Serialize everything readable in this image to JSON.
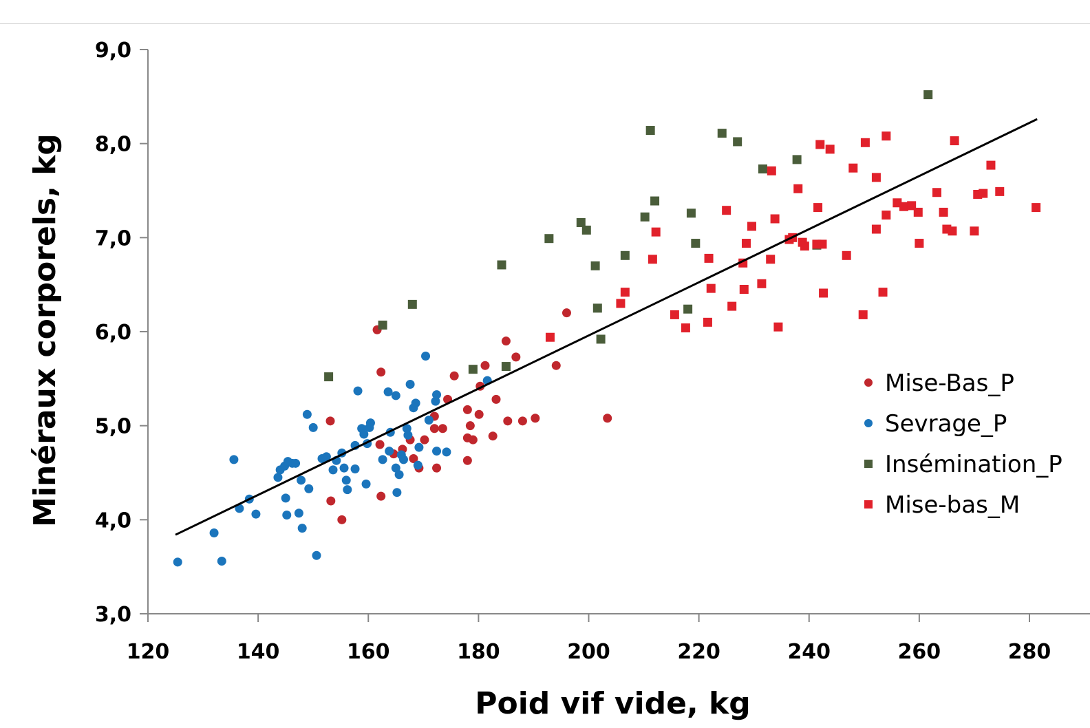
{
  "chart_data": {
    "type": "scatter",
    "title": "",
    "xlabel": "Poid vif vide, kg",
    "ylabel": "Minéraux corporels, kg",
    "xlim": [
      120,
      280
    ],
    "ylim": [
      3.0,
      9.0
    ],
    "xticks": [
      "120",
      "140",
      "160",
      "180",
      "200",
      "220",
      "240",
      "260",
      "280"
    ],
    "yticks": [
      "3,0",
      "4,0",
      "5,0",
      "6,0",
      "7,0",
      "8,0",
      "9,0"
    ],
    "grid": false,
    "legend_position": "right",
    "series": [
      {
        "name": "Mise-Bas_P",
        "marker": "circle",
        "color": "#c0272d",
        "points": [
          [
            153.1,
            5.05
          ],
          [
            153.2,
            4.2
          ],
          [
            155.2,
            4.0
          ],
          [
            161.6,
            6.02
          ],
          [
            162.3,
            5.57
          ],
          [
            162.1,
            4.8
          ],
          [
            162.3,
            4.25
          ],
          [
            164.6,
            4.7
          ],
          [
            166.2,
            4.75
          ],
          [
            167.6,
            4.85
          ],
          [
            168.2,
            4.65
          ],
          [
            169.2,
            4.55
          ],
          [
            170.2,
            4.85
          ],
          [
            172.0,
            5.1
          ],
          [
            172.0,
            4.97
          ],
          [
            172.4,
            4.55
          ],
          [
            173.5,
            4.97
          ],
          [
            174.4,
            5.28
          ],
          [
            175.6,
            5.53
          ],
          [
            178.0,
            5.17
          ],
          [
            178.0,
            4.87
          ],
          [
            178.0,
            4.63
          ],
          [
            178.5,
            5.0
          ],
          [
            179.0,
            4.85
          ],
          [
            180.1,
            5.12
          ],
          [
            180.3,
            5.42
          ],
          [
            181.2,
            5.64
          ],
          [
            182.6,
            4.89
          ],
          [
            183.2,
            5.28
          ],
          [
            185.0,
            5.9
          ],
          [
            185.3,
            5.05
          ],
          [
            186.8,
            5.73
          ],
          [
            188.0,
            5.05
          ],
          [
            190.3,
            5.08
          ],
          [
            194.1,
            5.64
          ],
          [
            196.0,
            6.2
          ],
          [
            203.4,
            5.08
          ]
        ]
      },
      {
        "name": "Sevrage_P",
        "marker": "circle",
        "color": "#1b75bc",
        "points": [
          [
            125.4,
            3.55
          ],
          [
            132.0,
            3.86
          ],
          [
            133.4,
            3.56
          ],
          [
            135.6,
            4.64
          ],
          [
            136.6,
            4.12
          ],
          [
            138.4,
            4.22
          ],
          [
            139.6,
            4.06
          ],
          [
            143.6,
            4.45
          ],
          [
            144.0,
            4.53
          ],
          [
            144.8,
            4.57
          ],
          [
            145.0,
            4.23
          ],
          [
            145.2,
            4.05
          ],
          [
            145.4,
            4.62
          ],
          [
            146.2,
            4.6
          ],
          [
            146.8,
            4.6
          ],
          [
            147.4,
            4.07
          ],
          [
            147.8,
            4.42
          ],
          [
            148.0,
            3.91
          ],
          [
            148.9,
            5.12
          ],
          [
            149.2,
            4.33
          ],
          [
            150.0,
            4.98
          ],
          [
            150.6,
            3.62
          ],
          [
            151.6,
            4.65
          ],
          [
            152.4,
            4.67
          ],
          [
            153.6,
            4.53
          ],
          [
            154.2,
            4.63
          ],
          [
            155.2,
            4.71
          ],
          [
            155.6,
            4.55
          ],
          [
            156.0,
            4.42
          ],
          [
            156.2,
            4.32
          ],
          [
            157.6,
            4.54
          ],
          [
            157.6,
            4.79
          ],
          [
            158.1,
            5.37
          ],
          [
            158.8,
            4.97
          ],
          [
            159.2,
            4.91
          ],
          [
            159.6,
            4.38
          ],
          [
            159.8,
            4.81
          ],
          [
            160.2,
            4.98
          ],
          [
            160.4,
            5.03
          ],
          [
            162.6,
            4.64
          ],
          [
            163.6,
            5.36
          ],
          [
            163.8,
            4.73
          ],
          [
            164.0,
            4.93
          ],
          [
            165.0,
            5.32
          ],
          [
            165.0,
            4.55
          ],
          [
            165.2,
            4.29
          ],
          [
            165.6,
            4.48
          ],
          [
            166.0,
            4.69
          ],
          [
            166.4,
            4.64
          ],
          [
            167.0,
            4.97
          ],
          [
            167.2,
            4.9
          ],
          [
            167.6,
            5.44
          ],
          [
            168.2,
            5.19
          ],
          [
            168.6,
            5.24
          ],
          [
            169.0,
            4.58
          ],
          [
            169.2,
            4.77
          ],
          [
            170.4,
            5.74
          ],
          [
            171.0,
            5.06
          ],
          [
            172.2,
            5.26
          ],
          [
            172.4,
            5.33
          ],
          [
            172.4,
            4.73
          ],
          [
            174.2,
            4.72
          ],
          [
            181.6,
            5.48
          ]
        ]
      },
      {
        "name": "Insémination_P",
        "marker": "square",
        "color": "#4a5d3a",
        "points": [
          [
            152.8,
            5.52
          ],
          [
            162.6,
            6.07
          ],
          [
            168.0,
            6.29
          ],
          [
            179.0,
            5.6
          ],
          [
            184.2,
            6.71
          ],
          [
            185.0,
            5.63
          ],
          [
            192.8,
            6.99
          ],
          [
            198.6,
            7.16
          ],
          [
            199.6,
            7.08
          ],
          [
            201.2,
            6.7
          ],
          [
            201.6,
            6.25
          ],
          [
            202.2,
            5.92
          ],
          [
            206.6,
            6.81
          ],
          [
            210.2,
            7.22
          ],
          [
            211.2,
            8.14
          ],
          [
            212.0,
            7.39
          ],
          [
            218.0,
            6.24
          ],
          [
            218.6,
            7.26
          ],
          [
            219.4,
            6.94
          ],
          [
            224.2,
            8.11
          ],
          [
            227.0,
            8.02
          ],
          [
            231.6,
            7.73
          ],
          [
            237.8,
            7.83
          ],
          [
            241.4,
            6.92
          ],
          [
            261.6,
            8.52
          ]
        ]
      },
      {
        "name": "Mise-bas_M",
        "marker": "square",
        "color": "#e1212b",
        "points": [
          [
            193.0,
            5.94
          ],
          [
            205.8,
            6.3
          ],
          [
            206.6,
            6.42
          ],
          [
            211.6,
            6.77
          ],
          [
            212.2,
            7.06
          ],
          [
            215.6,
            6.18
          ],
          [
            217.6,
            6.04
          ],
          [
            221.6,
            6.1
          ],
          [
            221.8,
            6.78
          ],
          [
            222.2,
            6.46
          ],
          [
            225.0,
            7.29
          ],
          [
            226.0,
            6.27
          ],
          [
            228.0,
            6.73
          ],
          [
            228.2,
            6.45
          ],
          [
            228.6,
            6.94
          ],
          [
            229.6,
            7.12
          ],
          [
            231.4,
            6.51
          ],
          [
            233.0,
            6.77
          ],
          [
            233.2,
            7.71
          ],
          [
            233.8,
            7.2
          ],
          [
            234.4,
            6.05
          ],
          [
            236.4,
            6.98
          ],
          [
            237.0,
            7.0
          ],
          [
            238.0,
            7.52
          ],
          [
            238.8,
            6.95
          ],
          [
            239.2,
            6.91
          ],
          [
            241.4,
            6.93
          ],
          [
            241.6,
            7.32
          ],
          [
            242.0,
            7.99
          ],
          [
            242.4,
            6.93
          ],
          [
            242.6,
            6.41
          ],
          [
            243.8,
            7.94
          ],
          [
            246.8,
            6.81
          ],
          [
            248.0,
            7.74
          ],
          [
            249.8,
            6.18
          ],
          [
            250.2,
            8.01
          ],
          [
            252.2,
            7.64
          ],
          [
            252.2,
            7.09
          ],
          [
            253.4,
            6.42
          ],
          [
            254.0,
            7.24
          ],
          [
            254.0,
            8.08
          ],
          [
            256.0,
            7.37
          ],
          [
            257.2,
            7.33
          ],
          [
            258.6,
            7.34
          ],
          [
            259.8,
            7.27
          ],
          [
            260.0,
            6.94
          ],
          [
            263.2,
            7.48
          ],
          [
            264.4,
            7.27
          ],
          [
            265.0,
            7.09
          ],
          [
            266.0,
            7.07
          ],
          [
            266.4,
            8.03
          ],
          [
            270.0,
            7.07
          ],
          [
            270.6,
            7.46
          ],
          [
            271.6,
            7.47
          ],
          [
            273.0,
            7.77
          ],
          [
            274.6,
            7.49
          ],
          [
            281.2,
            7.32
          ]
        ]
      }
    ],
    "trendline": {
      "type": "linear",
      "color": "#000000",
      "points": [
        [
          125.0,
          3.84
        ],
        [
          281.4,
          8.26
        ]
      ]
    }
  }
}
